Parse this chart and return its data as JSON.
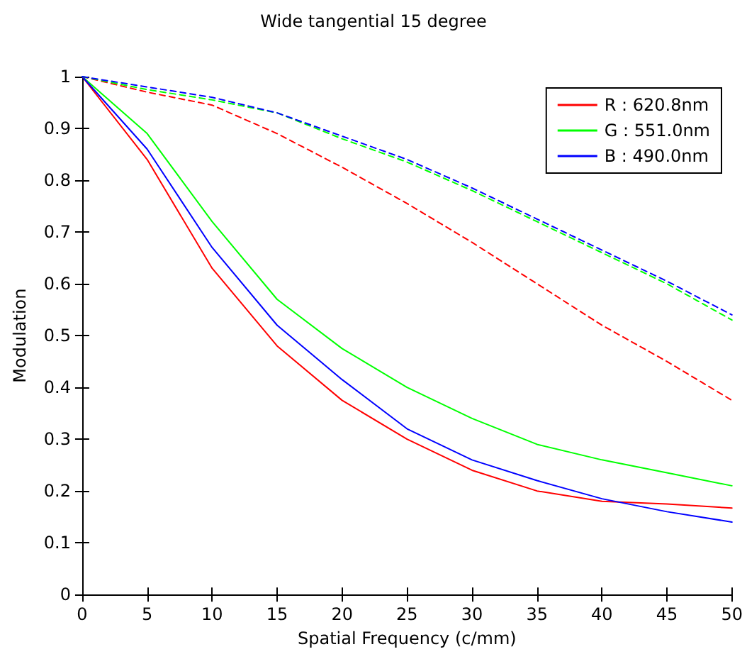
{
  "chart_data": {
    "type": "line",
    "title": "Wide tangential 15 degree",
    "xlabel": "Spatial Frequency (c/mm)",
    "ylabel": "Modulation",
    "x": [
      0,
      5,
      10,
      15,
      20,
      25,
      30,
      35,
      40,
      45,
      50
    ],
    "series": [
      {
        "name": "R : 620.8nm",
        "color": "#ff0000",
        "line_style": "solid",
        "values": [
          1,
          0.84,
          0.63,
          0.48,
          0.375,
          0.3,
          0.24,
          0.2,
          0.18,
          0.175,
          0.167
        ]
      },
      {
        "name": "G : 551.0nm",
        "color": "#00ff00",
        "line_style": "solid",
        "values": [
          1,
          0.89,
          0.72,
          0.57,
          0.475,
          0.4,
          0.34,
          0.29,
          0.26,
          0.235,
          0.21
        ]
      },
      {
        "name": "B : 490.0nm",
        "color": "#0000ff",
        "line_style": "solid",
        "values": [
          1,
          0.86,
          0.67,
          0.52,
          0.415,
          0.32,
          0.26,
          0.22,
          0.185,
          0.16,
          0.14
        ]
      },
      {
        "color": "#ff0000",
        "line_style": "dashed",
        "values": [
          1,
          0.97,
          0.945,
          0.89,
          0.825,
          0.755,
          0.68,
          0.6,
          0.52,
          0.45,
          0.375
        ]
      },
      {
        "color": "#00ff00",
        "line_style": "dashed",
        "values": [
          1,
          0.975,
          0.955,
          0.93,
          0.88,
          0.835,
          0.78,
          0.72,
          0.66,
          0.6,
          0.53
        ]
      },
      {
        "color": "#0000ff",
        "line_style": "dashed",
        "values": [
          1,
          0.98,
          0.96,
          0.93,
          0.885,
          0.84,
          0.785,
          0.725,
          0.665,
          0.605,
          0.54
        ]
      }
    ],
    "xlim": [
      0,
      50
    ],
    "xticks": [
      0,
      5,
      10,
      15,
      20,
      25,
      30,
      35,
      40,
      45,
      50
    ],
    "ylim": [
      0,
      1
    ],
    "yticks": [
      0,
      0.1,
      0.2,
      0.3,
      0.4,
      0.5,
      0.6,
      0.7,
      0.8,
      0.9,
      1
    ],
    "grid": false,
    "legend": "top right",
    "marker": "none"
  }
}
